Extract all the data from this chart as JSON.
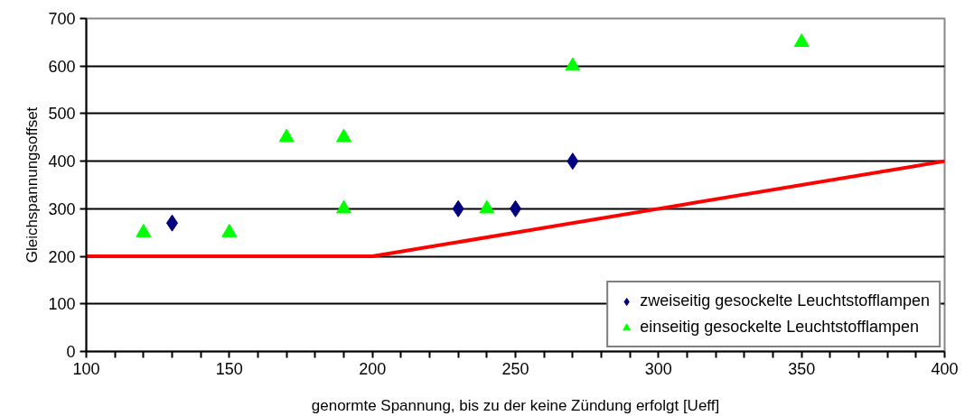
{
  "chart_data": {
    "type": "scatter",
    "xlabel": "genormte Spannung, bis zu der keine Zündung erfolgt [Ueff]",
    "ylabel": "Gleichspannungsoffset",
    "xlim": [
      100,
      400
    ],
    "ylim": [
      0,
      700
    ],
    "xticks": [
      100,
      {
        "value": 110,
        "label": null
      },
      {
        "value": 120,
        "label": null
      },
      {
        "value": 130,
        "label": null
      },
      {
        "value": 140,
        "label": null
      },
      150,
      {
        "value": 160,
        "label": null
      },
      {
        "value": 170,
        "label": null
      },
      {
        "value": 180,
        "label": null
      },
      {
        "value": 190,
        "label": null
      },
      200,
      {
        "value": 210,
        "label": null
      },
      {
        "value": 220,
        "label": null
      },
      {
        "value": 230,
        "label": null
      },
      {
        "value": 240,
        "label": null
      },
      250,
      {
        "value": 260,
        "label": null
      },
      {
        "value": 270,
        "label": null
      },
      {
        "value": 280,
        "label": null
      },
      {
        "value": 290,
        "label": null
      },
      300,
      {
        "value": 310,
        "label": null
      },
      {
        "value": 320,
        "label": null
      },
      {
        "value": 330,
        "label": null
      },
      {
        "value": 340,
        "label": null
      },
      350,
      {
        "value": 360,
        "label": null
      },
      {
        "value": 370,
        "label": null
      },
      {
        "value": 380,
        "label": null
      },
      {
        "value": 390,
        "label": null
      },
      400
    ],
    "yticks": [
      0,
      100,
      200,
      300,
      400,
      500,
      600,
      700
    ],
    "grid": "y",
    "legend": "bottom right",
    "series": [
      {
        "type": "line",
        "color": "#ff0000",
        "line_style": "solid",
        "x": [
          100,
          200,
          400
        ],
        "values": [
          200,
          200,
          400
        ]
      },
      {
        "name": "zweiseitig gesockelte Leuchtstofflampen",
        "color": "#000080",
        "marker": "diamond",
        "x": [
          130,
          230,
          250,
          270
        ],
        "values": [
          270,
          300,
          300,
          400
        ]
      },
      {
        "name": "einseitig gesockelte Leuchtstofflampen",
        "color": "#00ff00",
        "marker": "triangle",
        "x": [
          120,
          150,
          170,
          190,
          190,
          240,
          270,
          350
        ],
        "values": [
          250,
          250,
          450,
          450,
          300,
          300,
          600,
          650
        ]
      }
    ]
  }
}
